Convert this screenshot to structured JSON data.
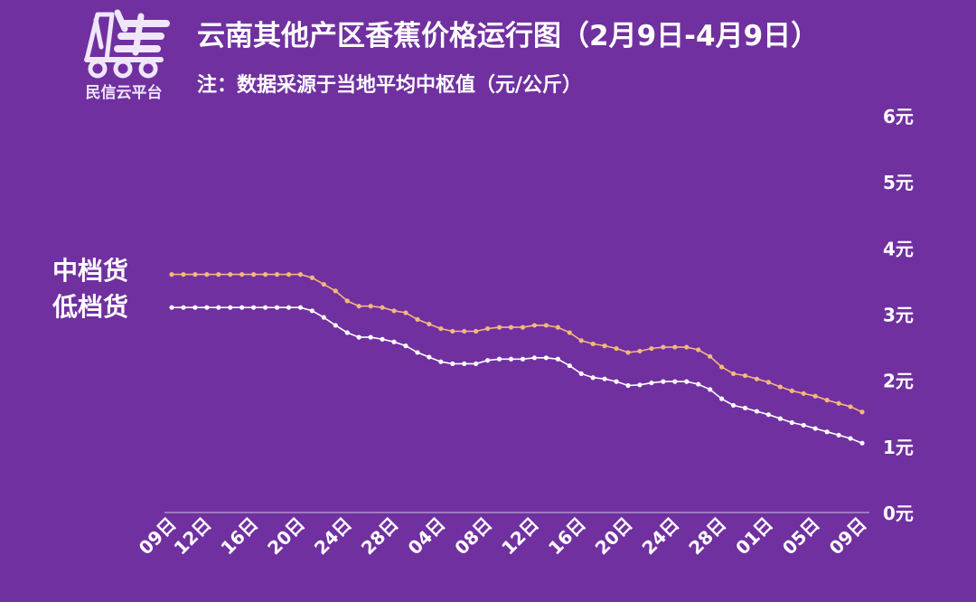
{
  "header": {
    "logo_text": "民信云平台",
    "title": "云南其他产区香蕉价格运行图（2月9日-4月9日）",
    "subtitle": "注：数据采源于当地平均中枢值（元/公斤）"
  },
  "colors": {
    "background": "#7030a0",
    "series_mid": "#f5b87a",
    "series_low": "#ffffff",
    "axis": "#cfc3e0"
  },
  "chart_data": {
    "type": "line",
    "ylim": [
      0,
      6
    ],
    "y_ticks": [
      "0元",
      "1元",
      "2元",
      "3元",
      "4元",
      "5元",
      "6元"
    ],
    "x_ticks": [
      "09日",
      "12日",
      "16日",
      "20日",
      "24日",
      "28日",
      "04日",
      "08日",
      "12日",
      "16日",
      "20日",
      "24日",
      "28日",
      "01日",
      "05日",
      "09日"
    ],
    "x_tick_positions": [
      0,
      3,
      7,
      11,
      15,
      19,
      23,
      27,
      31,
      35,
      39,
      43,
      47,
      51,
      55,
      59
    ],
    "point_count": 60,
    "series": [
      {
        "name": "中档货",
        "values": [
          3.6,
          3.6,
          3.6,
          3.6,
          3.6,
          3.6,
          3.6,
          3.6,
          3.6,
          3.6,
          3.6,
          3.6,
          3.55,
          3.45,
          3.35,
          3.2,
          3.12,
          3.12,
          3.1,
          3.05,
          3.02,
          2.92,
          2.85,
          2.78,
          2.74,
          2.74,
          2.74,
          2.78,
          2.8,
          2.8,
          2.8,
          2.83,
          2.83,
          2.8,
          2.72,
          2.6,
          2.55,
          2.52,
          2.48,
          2.42,
          2.44,
          2.48,
          2.5,
          2.5,
          2.5,
          2.46,
          2.36,
          2.2,
          2.1,
          2.07,
          2.02,
          1.97,
          1.9,
          1.84,
          1.8,
          1.76,
          1.7,
          1.65,
          1.6,
          1.52
        ]
      },
      {
        "name": "低档货",
        "values": [
          3.1,
          3.1,
          3.1,
          3.1,
          3.1,
          3.1,
          3.1,
          3.1,
          3.1,
          3.1,
          3.1,
          3.1,
          3.05,
          2.95,
          2.83,
          2.72,
          2.65,
          2.65,
          2.62,
          2.58,
          2.52,
          2.42,
          2.35,
          2.28,
          2.25,
          2.25,
          2.25,
          2.3,
          2.32,
          2.32,
          2.32,
          2.34,
          2.34,
          2.32,
          2.22,
          2.1,
          2.04,
          2.02,
          1.98,
          1.92,
          1.93,
          1.96,
          1.98,
          1.98,
          1.98,
          1.94,
          1.86,
          1.72,
          1.62,
          1.58,
          1.53,
          1.48,
          1.42,
          1.36,
          1.32,
          1.27,
          1.22,
          1.17,
          1.12,
          1.05
        ]
      }
    ]
  }
}
